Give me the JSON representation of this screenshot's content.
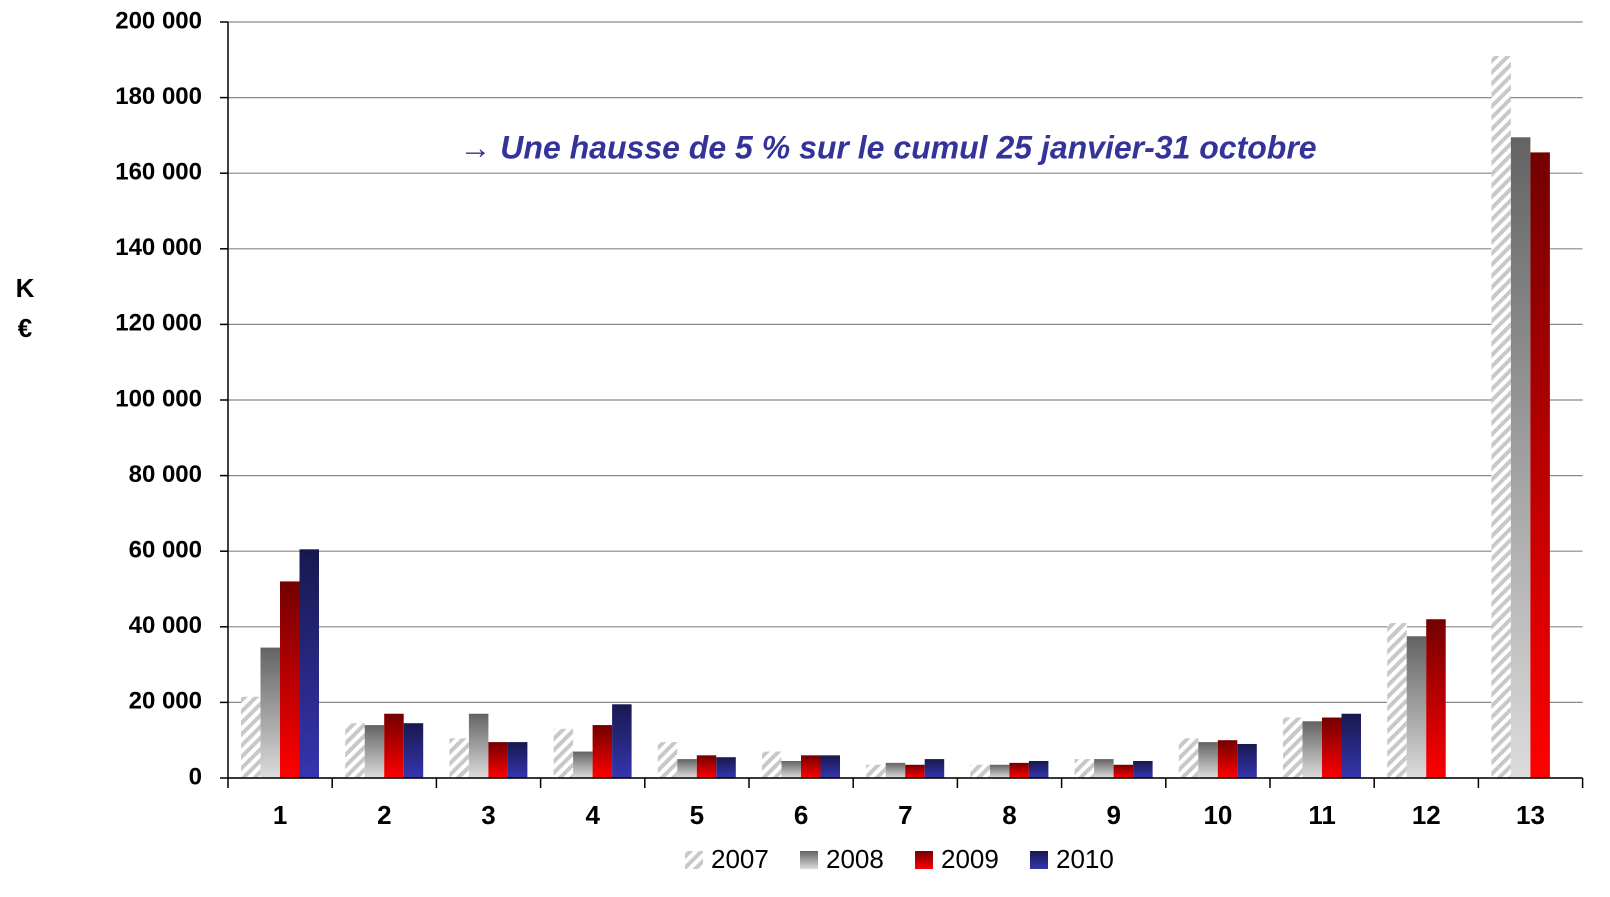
{
  "chart_data": {
    "type": "bar",
    "y_label": "K €",
    "annotation": "→ Une hausse de 5 % sur le cumul 25 janvier-31 octobre",
    "categories": [
      "1",
      "2",
      "3",
      "4",
      "5",
      "6",
      "7",
      "8",
      "9",
      "10",
      "11",
      "12",
      "13"
    ],
    "series": [
      {
        "name": "2007",
        "color": "#c8c8c8",
        "pattern": "hatch",
        "values": [
          21500,
          14500,
          10500,
          13000,
          9500,
          7000,
          3500,
          3500,
          5000,
          10500,
          16000,
          41000,
          191000
        ]
      },
      {
        "name": "2008",
        "color": "#dcdcdc",
        "values": [
          34500,
          14000,
          17000,
          7000,
          5000,
          4500,
          4000,
          3500,
          5000,
          9500,
          15000,
          37500,
          169500
        ]
      },
      {
        "name": "2009",
        "color": "#ff0000",
        "values": [
          52000,
          17000,
          9500,
          14000,
          6000,
          6000,
          3500,
          4000,
          3500,
          10000,
          16000,
          42000,
          165500
        ]
      },
      {
        "name": "2010",
        "color": "#3535b0",
        "values": [
          60500,
          14500,
          9500,
          19500,
          5500,
          6000,
          5000,
          4500,
          4500,
          9000,
          17000,
          null,
          null
        ]
      }
    ],
    "ylim": [
      0,
      200000
    ],
    "yticks": [
      0,
      {
        "value": 20000,
        "label": "20 000"
      },
      {
        "value": 40000,
        "label": "40 000"
      },
      {
        "value": 60000,
        "label": "60 000"
      },
      {
        "value": 80000,
        "label": "80 000"
      },
      {
        "value": 100000,
        "label": "100 000"
      },
      {
        "value": 120000,
        "label": "120 000"
      },
      {
        "value": 140000,
        "label": "140 000"
      },
      {
        "value": 160000,
        "label": "160 000"
      },
      {
        "value": 180000,
        "label": "180 000"
      },
      {
        "value": 200000,
        "label": "200 000"
      }
    ],
    "grid": true,
    "legend": "bottom"
  }
}
